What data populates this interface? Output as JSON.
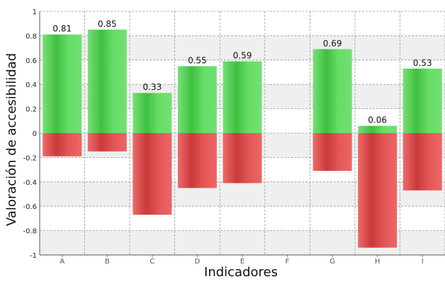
{
  "chart_data": {
    "type": "bar",
    "xlabel": "Indicadores",
    "ylabel": "Valoración de accesibilidad",
    "ylim": [
      -1,
      1
    ],
    "yticks": [
      -1,
      -0.8,
      -0.6,
      -0.4,
      -0.2,
      0,
      0.2,
      0.4,
      0.6,
      0.8,
      1
    ],
    "grid": true,
    "categories": [
      "A",
      "B",
      "C",
      "D",
      "E",
      "F",
      "G",
      "H",
      "I"
    ],
    "series": [
      {
        "values": [
          0.81,
          0.85,
          0.33,
          0.55,
          0.59,
          0,
          0.69,
          0.06,
          0.53
        ],
        "color": "#5fd55f"
      },
      {
        "values": [
          -0.19,
          -0.15,
          -0.67,
          -0.45,
          -0.41,
          0,
          -0.31,
          -0.94,
          -0.47
        ],
        "color": "#e24a4a"
      }
    ],
    "data_labels": [
      "0.81",
      "0.85",
      "0.33",
      "0.55",
      "0.59",
      "",
      "0.69",
      "0.06",
      "0.53"
    ]
  }
}
